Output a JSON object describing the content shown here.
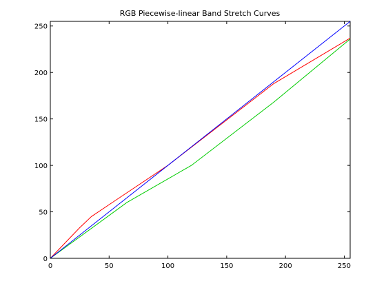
{
  "chart_data": {
    "type": "line",
    "title": "RGB Piecewise-linear Band Stretch Curves",
    "xlabel": "",
    "ylabel": "",
    "xlim": [
      0,
      255
    ],
    "ylim": [
      0,
      255
    ],
    "xticks": [
      0,
      50,
      100,
      150,
      200,
      250
    ],
    "yticks": [
      0,
      50,
      100,
      150,
      200,
      250
    ],
    "grid": false,
    "legend": "none",
    "series": [
      {
        "color": "#ff0000",
        "x": [
          0,
          25,
          35,
          55,
          100,
          190,
          255
        ],
        "y": [
          0,
          33,
          45,
          62,
          100,
          188,
          237
        ]
      },
      {
        "color": "#00cc00",
        "x": [
          0,
          65,
          120,
          190,
          255
        ],
        "y": [
          0,
          60,
          100,
          168,
          236
        ]
      },
      {
        "color": "#0000ff",
        "x": [
          0,
          255
        ],
        "y": [
          0,
          255
        ]
      }
    ]
  }
}
